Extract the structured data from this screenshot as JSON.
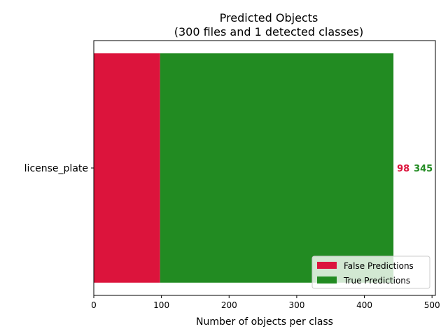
{
  "chart_data": {
    "type": "bar",
    "orientation": "horizontal",
    "stacked": true,
    "title_line1": "Predicted Objects",
    "title_line2": "(300 files and 1 detected classes)",
    "xlabel": "Number of objects per class",
    "ylabel": "",
    "categories": [
      "license_plate"
    ],
    "xlim": [
      0,
      505
    ],
    "xticks": [
      0,
      100,
      200,
      300,
      400,
      500
    ],
    "grid": false,
    "legend_position": "lower-right",
    "series": [
      {
        "name": "False Predictions",
        "values": [
          98
        ],
        "color": "#dc143c"
      },
      {
        "name": "True Predictions",
        "values": [
          345
        ],
        "color": "#228b22"
      }
    ],
    "data_labels": [
      {
        "text": "98",
        "color": "#dc143c"
      },
      {
        "text": "345",
        "color": "#228b22"
      }
    ]
  }
}
